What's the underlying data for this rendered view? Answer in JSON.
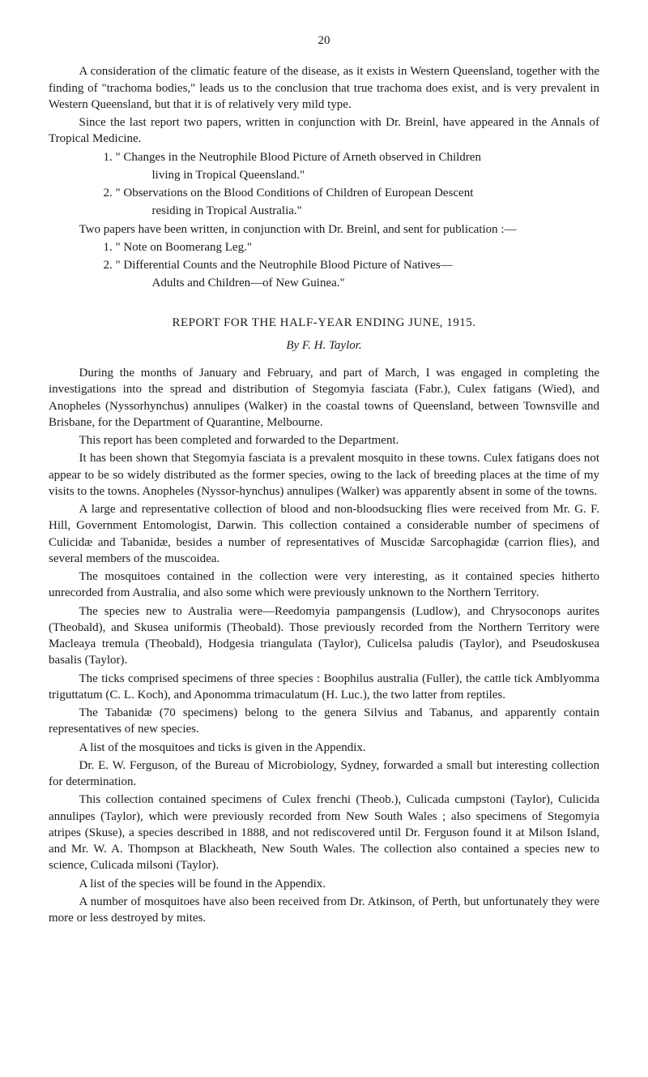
{
  "page_number": "20",
  "para1": "A consideration of the climatic feature of the disease, as it exists in Western Queensland, together with the finding of \"trachoma bodies,\" leads us to the conclusion that true trachoma does exist, and is very prevalent in Western Queensland, but that it is of relatively very mild type.",
  "para2": "Since the last report two papers, written in conjunction with Dr. Breinl, have appeared in the Annals of Tropical Medicine.",
  "list1_item1": "1. \" Changes in the Neutrophile Blood Picture of Arneth observed in Children",
  "list1_item1_cont": "living in Tropical Queensland.\"",
  "list1_item2": "2. \" Observations on the Blood Conditions of Children of European Descent",
  "list1_item2_cont": "residing in Tropical Australia.\"",
  "para3": "Two papers have been written, in conjunction with Dr. Breinl, and sent for publication :—",
  "list2_item1": "1. \" Note on Boomerang Leg.\"",
  "list2_item2": "2. \" Differential Counts and the Neutrophile Blood Picture of Natives—",
  "list2_item2_cont": "Adults and Children—of New Guinea.\"",
  "report_title": "REPORT FOR THE HALF-YEAR ENDING JUNE, 1915.",
  "byline": "By F. H. Taylor.",
  "body1": "During the months of January and February, and part of March, I was engaged in completing the investigations into the spread and distribution of Stegomyia fasciata (Fabr.), Culex fatigans (Wied), and Anopheles (Nyssorhynchus) annulipes (Walker) in the coastal towns of Queensland, between Townsville and Brisbane, for the Department of Quarantine, Melbourne.",
  "body2": "This report has been completed and forwarded to the Department.",
  "body3": "It has been shown that Stegomyia fasciata is a prevalent mosquito in these towns. Culex fatigans does not appear to be so widely distributed as the former species, owing to the lack of breeding places at the time of my visits to the towns. Anopheles (Nyssor-hynchus) annulipes (Walker) was apparently absent in some of the towns.",
  "body4": "A large and representative collection of blood and non-bloodsucking flies were received from Mr. G. F. Hill, Government Entomologist, Darwin. This collection contained a considerable number of specimens of Culicidæ and Tabanidæ, besides a number of representatives of Muscidæ Sarcophagidæ (carrion flies), and several members of the muscoidea.",
  "body5": "The mosquitoes contained in the collection were very interesting, as it contained species hitherto unrecorded from Australia, and also some which were previously unknown to the Northern Territory.",
  "body6": "The species new to Australia were—Reedomyia pampangensis (Ludlow), and Chrysoconops aurites (Theobald), and Skusea uniformis (Theobald). Those previously recorded from the Northern Territory were Macleaya tremula (Theobald), Hodgesia triangulata (Taylor), Culicelsa paludis (Taylor), and Pseudoskusea basalis (Taylor).",
  "body7": "The ticks comprised specimens of three species :  Boophilus australia (Fuller), the cattle tick Amblyomma triguttatum (C. L. Koch), and Aponomma trimaculatum (H. Luc.), the two latter from reptiles.",
  "body8": "The Tabanidæ (70 specimens) belong to the genera Silvius and Tabanus, and apparently contain representatives of new species.",
  "body9": "A list of the mosquitoes and ticks is given in the Appendix.",
  "body10": "Dr. E. W. Ferguson, of the Bureau of Microbiology, Sydney, forwarded a small but interesting collection for determination.",
  "body11": "This collection contained specimens of Culex frenchi (Theob.), Culicada cumpstoni (Taylor), Culicida annulipes (Taylor), which were previously recorded from New South Wales ; also specimens of Stegomyia atripes (Skuse), a species described in 1888, and not rediscovered until Dr. Ferguson found it at Milson Island, and Mr. W. A. Thompson at Blackheath, New South Wales.  The collection also contained a species new to science, Culicada milsoni (Taylor).",
  "body12": "A list of the species will be found in the Appendix.",
  "body13": "A number of mosquitoes have also been received from Dr. Atkinson, of Perth, but unfortunately they were more or less destroyed by mites."
}
